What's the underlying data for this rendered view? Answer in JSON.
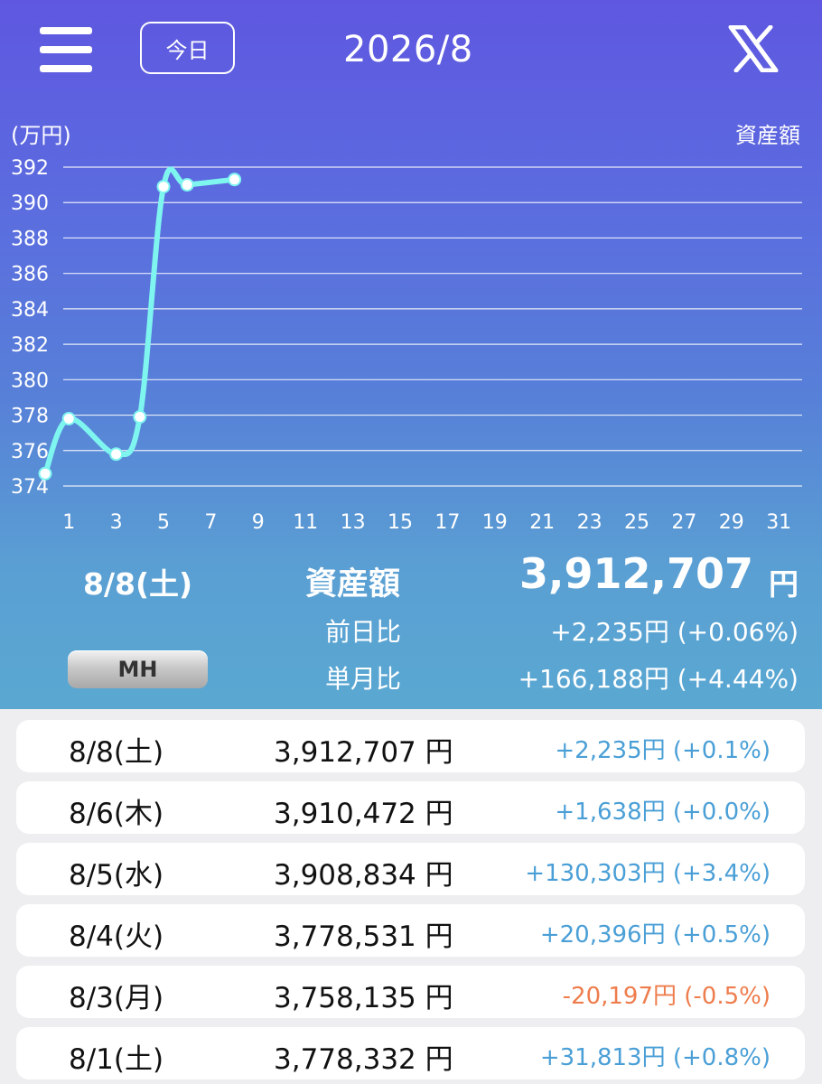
{
  "header": {
    "today_label": "今日",
    "month_title": "2026/8"
  },
  "chart": {
    "unit_label": "(万円)",
    "metric_label": "資産額"
  },
  "chart_data": {
    "type": "line",
    "ylabel": "(万円)",
    "ylim": [
      374,
      392
    ],
    "y_ticks": [
      374,
      376,
      378,
      380,
      382,
      384,
      386,
      388,
      390,
      392
    ],
    "xlim": [
      0,
      31
    ],
    "x_ticks": [
      1,
      3,
      5,
      7,
      9,
      11,
      13,
      15,
      17,
      19,
      21,
      23,
      25,
      27,
      29,
      31
    ],
    "grid": true,
    "series": [
      {
        "name": "資産額",
        "color": "#7ff5f0",
        "x": [
          0,
          1,
          3,
          4,
          5,
          6,
          8
        ],
        "y": [
          374.7,
          377.8,
          375.8,
          377.9,
          390.9,
          391.0,
          391.3
        ]
      }
    ]
  },
  "summary": {
    "date": "8/8(土)",
    "label": "資産額",
    "value": "3,912,707",
    "unit": "円",
    "daily_label": "前日比",
    "daily_value": "+2,235円 (+0.06%)",
    "monthly_label": "単月比",
    "monthly_value": "+166,188円 (+4.44%)",
    "mh_label": "MH"
  },
  "rows": [
    {
      "date": "8/8(土)",
      "amount": "3,912,707 円",
      "change": "+2,235円 (+0.1%)",
      "sign": "pos"
    },
    {
      "date": "8/6(木)",
      "amount": "3,910,472 円",
      "change": "+1,638円 (+0.0%)",
      "sign": "pos"
    },
    {
      "date": "8/5(水)",
      "amount": "3,908,834 円",
      "change": "+130,303円 (+3.4%)",
      "sign": "pos"
    },
    {
      "date": "8/4(火)",
      "amount": "3,778,531 円",
      "change": "+20,396円 (+0.5%)",
      "sign": "pos"
    },
    {
      "date": "8/3(月)",
      "amount": "3,758,135 円",
      "change": "-20,197円 (-0.5%)",
      "sign": "neg"
    },
    {
      "date": "8/1(土)",
      "amount": "3,778,332 円",
      "change": "+31,813円 (+0.8%)",
      "sign": "pos"
    }
  ]
}
